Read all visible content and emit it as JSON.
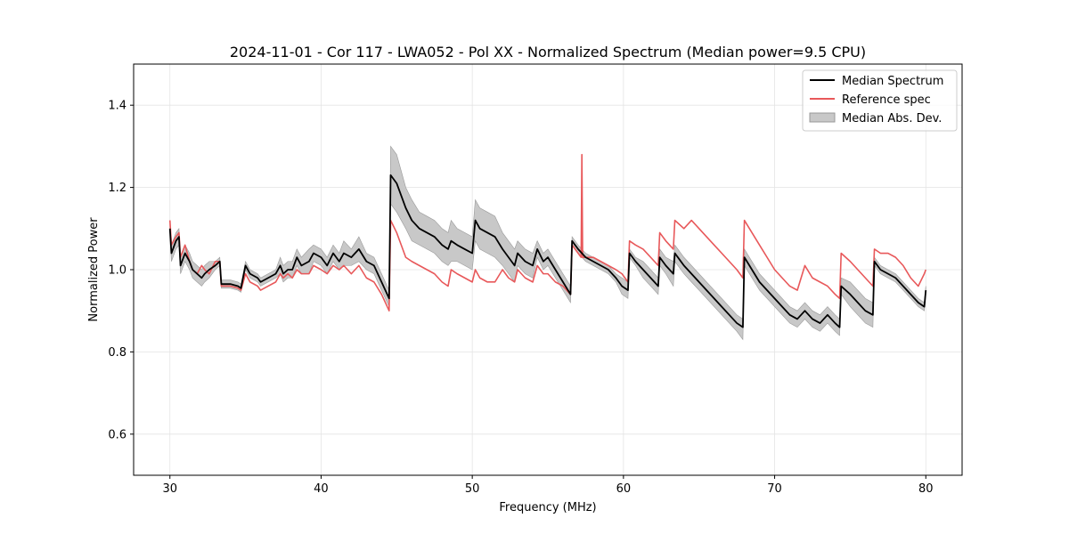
{
  "chart_data": {
    "type": "line",
    "title": "2024-11-01 - Cor 117 - LWA052 - Pol XX - Normalized Spectrum (Median power=9.5 CPU)",
    "xlabel": "Frequency (MHz)",
    "ylabel": "Normalized Power",
    "xlim": [
      27.6,
      82.4
    ],
    "ylim": [
      0.5,
      1.5
    ],
    "xticks": [
      30,
      40,
      50,
      60,
      70,
      80
    ],
    "yticks": [
      0.6,
      0.8,
      1.0,
      1.2,
      1.4
    ],
    "xtick_labels": [
      "30",
      "40",
      "50",
      "60",
      "70",
      "80"
    ],
    "ytick_labels": [
      "0.6",
      "0.8",
      "1.0",
      "1.2",
      "1.4"
    ],
    "grid": true,
    "legend_position": "top-right",
    "legend": [
      {
        "label": "Median Spectrum",
        "kind": "line",
        "color": "#000000"
      },
      {
        "label": "Reference spec",
        "kind": "line",
        "color": "#e8585a"
      },
      {
        "label": "Median Abs. Dev.",
        "kind": "patch",
        "color": "#c8c8c8"
      }
    ],
    "series": [
      {
        "name": "Median Spectrum",
        "color": "#000000",
        "x": [
          30.0,
          30.1,
          30.4,
          30.6,
          30.7,
          31.0,
          31.3,
          31.5,
          31.8,
          32.1,
          32.3,
          32.6,
          33.0,
          33.3,
          33.4,
          34.0,
          34.5,
          34.7,
          35.0,
          35.3,
          35.8,
          36.0,
          36.5,
          37.0,
          37.3,
          37.5,
          37.8,
          38.1,
          38.4,
          38.7,
          39.2,
          39.5,
          40.0,
          40.4,
          40.8,
          41.2,
          41.5,
          42.0,
          42.5,
          43.0,
          43.5,
          44.0,
          44.5,
          44.6,
          45.0,
          45.3,
          45.6,
          46.0,
          46.5,
          47.0,
          47.5,
          48.0,
          48.4,
          48.6,
          49.0,
          49.5,
          50.0,
          50.2,
          50.5,
          51.0,
          51.5,
          52.0,
          52.4,
          52.8,
          53.0,
          53.5,
          54.0,
          54.3,
          54.7,
          55.0,
          55.5,
          56.0,
          56.5,
          56.6,
          57.0,
          57.5,
          58.0,
          58.5,
          59.0,
          59.5,
          59.9,
          60.3,
          60.4,
          60.8,
          61.3,
          61.8,
          62.3,
          62.4,
          62.8,
          63.3,
          63.4,
          64.0,
          64.5,
          65.0,
          65.5,
          66.0,
          66.5,
          67.0,
          67.5,
          67.9,
          68.0,
          68.5,
          69.0,
          69.5,
          70.0,
          70.5,
          71.0,
          71.5,
          72.0,
          72.5,
          73.0,
          73.5,
          74.0,
          74.3,
          74.4,
          75.0,
          75.5,
          76.0,
          76.5,
          76.6,
          77.0,
          77.5,
          78.0,
          78.5,
          79.0,
          79.5,
          79.9,
          80.0
        ],
        "y": [
          1.1,
          1.04,
          1.07,
          1.08,
          1.01,
          1.04,
          1.02,
          1.0,
          0.99,
          0.98,
          0.99,
          1.0,
          1.01,
          1.02,
          0.965,
          0.965,
          0.96,
          0.955,
          1.01,
          0.99,
          0.98,
          0.97,
          0.98,
          0.99,
          1.01,
          0.99,
          1.0,
          1.0,
          1.03,
          1.01,
          1.02,
          1.04,
          1.03,
          1.01,
          1.04,
          1.02,
          1.04,
          1.03,
          1.05,
          1.02,
          1.01,
          0.97,
          0.93,
          1.23,
          1.21,
          1.18,
          1.15,
          1.12,
          1.1,
          1.09,
          1.08,
          1.06,
          1.05,
          1.07,
          1.06,
          1.05,
          1.04,
          1.12,
          1.1,
          1.09,
          1.08,
          1.05,
          1.03,
          1.01,
          1.04,
          1.02,
          1.01,
          1.05,
          1.02,
          1.03,
          1.0,
          0.97,
          0.94,
          1.07,
          1.05,
          1.03,
          1.02,
          1.01,
          1.0,
          0.98,
          0.96,
          0.95,
          1.04,
          1.02,
          1.0,
          0.98,
          0.96,
          1.03,
          1.01,
          0.99,
          1.04,
          1.01,
          0.99,
          0.97,
          0.95,
          0.93,
          0.91,
          0.89,
          0.87,
          0.86,
          1.03,
          1.0,
          0.97,
          0.95,
          0.93,
          0.91,
          0.89,
          0.88,
          0.9,
          0.88,
          0.87,
          0.89,
          0.87,
          0.86,
          0.96,
          0.94,
          0.92,
          0.9,
          0.89,
          1.02,
          1.0,
          0.99,
          0.98,
          0.96,
          0.94,
          0.92,
          0.91,
          0.95
        ]
      },
      {
        "name": "Reference spec",
        "color": "#e8585a",
        "x": [
          30.0,
          30.1,
          30.4,
          30.6,
          30.7,
          31.0,
          31.3,
          31.5,
          31.8,
          32.1,
          32.3,
          32.6,
          33.0,
          33.3,
          33.4,
          34.0,
          34.5,
          34.7,
          35.0,
          35.3,
          35.8,
          36.0,
          36.5,
          37.0,
          37.3,
          37.5,
          37.8,
          38.1,
          38.4,
          38.7,
          39.2,
          39.5,
          40.0,
          40.4,
          40.8,
          41.2,
          41.5,
          42.0,
          42.5,
          43.0,
          43.5,
          44.0,
          44.5,
          44.6,
          45.0,
          45.3,
          45.6,
          46.0,
          46.5,
          47.0,
          47.5,
          48.0,
          48.4,
          48.6,
          49.0,
          49.5,
          50.0,
          50.2,
          50.5,
          51.0,
          51.5,
          52.0,
          52.4,
          52.8,
          53.0,
          53.5,
          54.0,
          54.3,
          54.7,
          55.0,
          55.5,
          56.0,
          56.5,
          56.6,
          57.0,
          57.2,
          57.25,
          57.3,
          57.5,
          58.0,
          58.5,
          59.0,
          59.5,
          59.9,
          60.3,
          60.4,
          60.8,
          61.3,
          61.8,
          62.3,
          62.4,
          62.8,
          63.3,
          63.4,
          64.0,
          64.5,
          65.0,
          65.5,
          66.0,
          66.5,
          67.0,
          67.5,
          67.9,
          68.0,
          68.5,
          69.0,
          69.5,
          70.0,
          70.5,
          71.0,
          71.5,
          72.0,
          72.5,
          73.0,
          73.5,
          74.0,
          74.3,
          74.4,
          75.0,
          75.5,
          76.0,
          76.5,
          76.6,
          77.0,
          77.5,
          78.0,
          78.5,
          79.0,
          79.5,
          79.9,
          80.0
        ],
        "y": [
          1.12,
          1.06,
          1.08,
          1.09,
          1.03,
          1.06,
          1.02,
          1.0,
          0.99,
          1.01,
          1.0,
          0.99,
          1.02,
          1.02,
          0.96,
          0.96,
          0.955,
          0.95,
          0.99,
          0.97,
          0.96,
          0.95,
          0.96,
          0.97,
          0.99,
          0.98,
          0.99,
          0.98,
          1.0,
          0.99,
          0.99,
          1.01,
          1.0,
          0.99,
          1.01,
          1.0,
          1.01,
          0.99,
          1.01,
          0.98,
          0.97,
          0.94,
          0.9,
          1.12,
          1.09,
          1.06,
          1.03,
          1.02,
          1.01,
          1.0,
          0.99,
          0.97,
          0.96,
          1.0,
          0.99,
          0.98,
          0.97,
          1.0,
          0.98,
          0.97,
          0.97,
          1.0,
          0.98,
          0.97,
          1.0,
          0.98,
          0.97,
          1.01,
          0.99,
          0.99,
          0.97,
          0.96,
          0.94,
          1.06,
          1.04,
          1.03,
          1.28,
          1.03,
          1.03,
          1.03,
          1.02,
          1.01,
          1.0,
          0.99,
          0.97,
          1.07,
          1.06,
          1.05,
          1.03,
          1.01,
          1.09,
          1.07,
          1.05,
          1.12,
          1.1,
          1.12,
          1.1,
          1.08,
          1.06,
          1.04,
          1.02,
          1.0,
          0.98,
          1.12,
          1.09,
          1.06,
          1.03,
          1.0,
          0.98,
          0.96,
          0.95,
          1.01,
          0.98,
          0.97,
          0.96,
          0.94,
          0.93,
          1.04,
          1.02,
          1.0,
          0.98,
          0.96,
          1.05,
          1.04,
          1.04,
          1.03,
          1.01,
          0.98,
          0.96,
          0.99,
          1.0
        ]
      }
    ],
    "band": {
      "name": "Median Abs. Dev.",
      "color": "#c8c8c8",
      "upper": [
        1.11,
        1.06,
        1.09,
        1.1,
        1.03,
        1.06,
        1.04,
        1.02,
        1.01,
        1.0,
        1.01,
        1.02,
        1.02,
        1.03,
        0.975,
        0.975,
        0.97,
        0.965,
        1.02,
        1.0,
        0.99,
        0.98,
        0.99,
        1.0,
        1.03,
        1.01,
        1.02,
        1.02,
        1.05,
        1.03,
        1.05,
        1.06,
        1.05,
        1.03,
        1.06,
        1.04,
        1.07,
        1.05,
        1.08,
        1.04,
        1.03,
        0.99,
        0.95,
        1.3,
        1.28,
        1.24,
        1.2,
        1.17,
        1.14,
        1.13,
        1.12,
        1.1,
        1.09,
        1.12,
        1.1,
        1.09,
        1.08,
        1.17,
        1.15,
        1.14,
        1.13,
        1.09,
        1.07,
        1.05,
        1.07,
        1.05,
        1.04,
        1.07,
        1.04,
        1.05,
        1.02,
        0.99,
        0.96,
        1.08,
        1.06,
        1.04,
        1.03,
        1.02,
        1.01,
        0.99,
        0.98,
        0.97,
        1.05,
        1.03,
        1.02,
        1.0,
        0.98,
        1.05,
        1.03,
        1.02,
        1.06,
        1.03,
        1.01,
        0.99,
        0.97,
        0.95,
        0.93,
        0.91,
        0.89,
        0.88,
        1.05,
        1.02,
        0.99,
        0.97,
        0.95,
        0.93,
        0.91,
        0.9,
        0.92,
        0.9,
        0.89,
        0.91,
        0.89,
        0.88,
        0.98,
        0.97,
        0.95,
        0.93,
        0.92,
        1.03,
        1.01,
        1.0,
        0.99,
        0.97,
        0.95,
        0.93,
        0.92,
        0.96
      ],
      "lower": [
        1.09,
        1.02,
        1.05,
        1.06,
        0.99,
        1.02,
        1.0,
        0.98,
        0.97,
        0.96,
        0.97,
        0.98,
        1.0,
        1.01,
        0.955,
        0.955,
        0.95,
        0.945,
        1.0,
        0.98,
        0.97,
        0.96,
        0.97,
        0.98,
        0.99,
        0.97,
        0.98,
        0.98,
        1.01,
        0.99,
        0.99,
        1.02,
        1.01,
        0.99,
        1.02,
        1.0,
        1.01,
        1.01,
        1.02,
        1.0,
        0.99,
        0.95,
        0.91,
        1.16,
        1.14,
        1.12,
        1.1,
        1.07,
        1.06,
        1.05,
        1.04,
        1.02,
        1.01,
        1.02,
        1.02,
        1.01,
        1.0,
        1.07,
        1.05,
        1.04,
        1.03,
        1.01,
        0.99,
        0.97,
        1.01,
        0.99,
        0.98,
        1.03,
        1.0,
        1.01,
        0.98,
        0.95,
        0.92,
        1.06,
        1.04,
        1.02,
        1.01,
        1.0,
        0.99,
        0.97,
        0.94,
        0.93,
        1.03,
        1.01,
        0.98,
        0.96,
        0.94,
        1.01,
        0.99,
        0.96,
        1.02,
        0.99,
        0.97,
        0.95,
        0.93,
        0.91,
        0.89,
        0.87,
        0.85,
        0.83,
        1.01,
        0.98,
        0.95,
        0.93,
        0.91,
        0.89,
        0.87,
        0.86,
        0.88,
        0.86,
        0.85,
        0.87,
        0.85,
        0.84,
        0.94,
        0.91,
        0.89,
        0.87,
        0.86,
        1.01,
        0.99,
        0.98,
        0.97,
        0.95,
        0.93,
        0.91,
        0.9,
        0.94
      ]
    }
  }
}
